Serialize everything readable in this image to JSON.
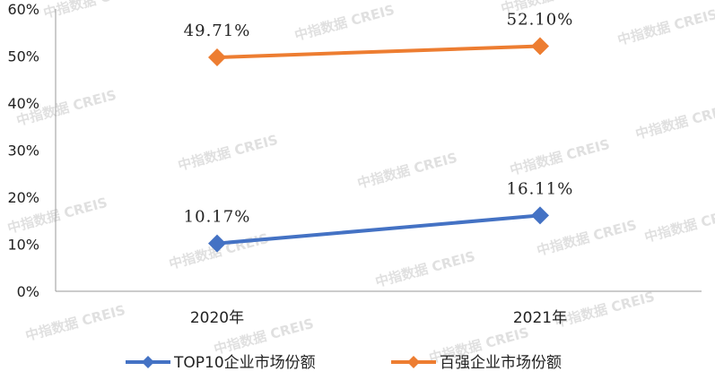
{
  "watermark": "中指数据 CREIS",
  "chart_data": {
    "type": "line",
    "categories": [
      "2020年",
      "2021年"
    ],
    "series": [
      {
        "name": "TOP10企业市场份额",
        "values": [
          10.17,
          16.11
        ],
        "labels": [
          "10.17%",
          "16.11%"
        ],
        "color": "#4472C4"
      },
      {
        "name": "百强企业市场份额",
        "values": [
          49.71,
          52.1
        ],
        "labels": [
          "49.71%",
          "52.10%"
        ],
        "color": "#ED7D31"
      }
    ],
    "y_ticks": [
      "0%",
      "10%",
      "20%",
      "30%",
      "40%",
      "50%",
      "60%"
    ],
    "ylim": [
      0,
      60
    ],
    "grid": false,
    "legend_position": "bottom",
    "marker": "diamond"
  }
}
